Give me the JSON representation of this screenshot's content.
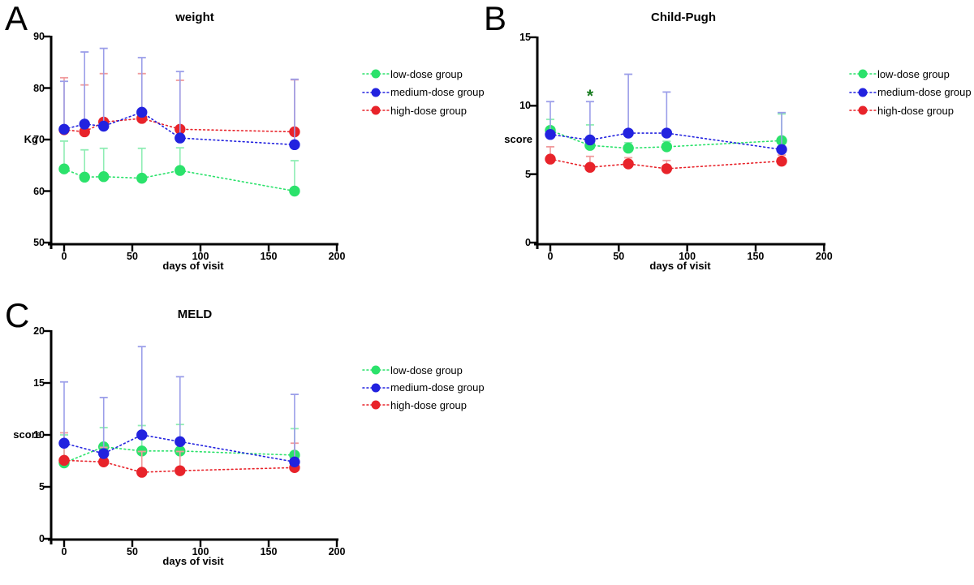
{
  "figure": {
    "background": "#ffffff",
    "panel_letters": [
      "A",
      "B",
      "C"
    ]
  },
  "chart_data": [
    {
      "type": "line",
      "panel_letter": "A",
      "title": "weight",
      "xlabel": "days of visit",
      "ylabel": "Kg",
      "xlim": [
        -12,
        200
      ],
      "ylim": [
        50,
        90
      ],
      "xticks": [
        0,
        50,
        100,
        150,
        200
      ],
      "yticks": [
        50,
        60,
        70,
        80,
        90
      ],
      "grid": false,
      "legend_position": "right",
      "x": [
        0,
        15,
        29,
        57,
        85,
        169
      ],
      "series": [
        {
          "name": "low-dose group",
          "color": "#2BE26B",
          "err_color": "#8FEDB4",
          "values": [
            64.3,
            62.7,
            62.8,
            62.5,
            64.0,
            60.0
          ],
          "err_top": [
            69.7,
            68.0,
            68.3,
            68.3,
            68.4,
            65.9
          ]
        },
        {
          "name": "medium-dose group",
          "color": "#2222DF",
          "err_color": "#9B9EE9",
          "values": [
            72.0,
            73.0,
            72.6,
            75.3,
            70.3,
            69.0
          ],
          "err_top": [
            81.3,
            87.0,
            87.7,
            85.9,
            83.2,
            81.7
          ]
        },
        {
          "name": "high-dose group",
          "color": "#E8232A",
          "err_color": "#F09B9D",
          "values": [
            71.9,
            71.5,
            73.4,
            74.1,
            72.0,
            71.5
          ],
          "err_top": [
            82.0,
            80.6,
            82.8,
            82.8,
            81.5,
            81.6
          ]
        }
      ],
      "annotations": []
    },
    {
      "type": "line",
      "panel_letter": "B",
      "title": "Child-Pugh",
      "xlabel": "days of visit",
      "ylabel": "score",
      "xlim": [
        -12,
        200
      ],
      "ylim": [
        0,
        15
      ],
      "xticks": [
        0,
        50,
        100,
        150,
        200
      ],
      "yticks": [
        0,
        5,
        10,
        15
      ],
      "grid": false,
      "legend_position": "right",
      "x": [
        0,
        29,
        57,
        85,
        169
      ],
      "series": [
        {
          "name": "low-dose group",
          "color": "#2BE26B",
          "err_color": "#8FEDB4",
          "values": [
            8.2,
            7.1,
            6.9,
            7.0,
            7.45
          ],
          "err_top": [
            9.0,
            8.6,
            7.3,
            7.4,
            9.4
          ]
        },
        {
          "name": "medium-dose group",
          "color": "#2222DF",
          "err_color": "#9B9EE9",
          "values": [
            7.9,
            7.5,
            8.0,
            8.0,
            6.8
          ],
          "err_top": [
            10.3,
            10.3,
            12.3,
            11.0,
            9.5
          ]
        },
        {
          "name": "high-dose group",
          "color": "#E8232A",
          "err_color": "#F09B9D",
          "values": [
            6.1,
            5.5,
            5.75,
            5.4,
            5.95
          ],
          "err_top": [
            7.0,
            6.3,
            6.2,
            6.0,
            6.4
          ]
        }
      ],
      "annotations": [
        {
          "text": "*",
          "x": 29,
          "y": 10.9,
          "color": "#1A7D22"
        }
      ]
    },
    {
      "type": "line",
      "panel_letter": "C",
      "title": "MELD",
      "xlabel": "days of visit",
      "ylabel": "score",
      "xlim": [
        -12,
        200
      ],
      "ylim": [
        0,
        20
      ],
      "xticks": [
        0,
        50,
        100,
        150,
        200
      ],
      "yticks": [
        0,
        5,
        10,
        15,
        20
      ],
      "grid": false,
      "legend_position": "right",
      "x": [
        0,
        29,
        57,
        85,
        169
      ],
      "series": [
        {
          "name": "low-dose group",
          "color": "#2BE26B",
          "err_color": "#8FEDB4",
          "values": [
            7.3,
            8.85,
            8.45,
            8.45,
            8.05
          ],
          "err_top": [
            10.0,
            10.7,
            10.9,
            11.0,
            10.6
          ]
        },
        {
          "name": "medium-dose group",
          "color": "#2222DF",
          "err_color": "#9B9EE9",
          "values": [
            9.2,
            8.2,
            10.0,
            9.35,
            7.4
          ],
          "err_top": [
            15.1,
            13.6,
            18.5,
            15.6,
            13.9
          ]
        },
        {
          "name": "high-dose group",
          "color": "#E8232A",
          "err_color": "#F09B9D",
          "values": [
            7.55,
            7.4,
            6.4,
            6.55,
            6.85
          ],
          "err_top": [
            10.2,
            8.8,
            8.4,
            8.4,
            9.2
          ]
        }
      ],
      "annotations": []
    }
  ]
}
